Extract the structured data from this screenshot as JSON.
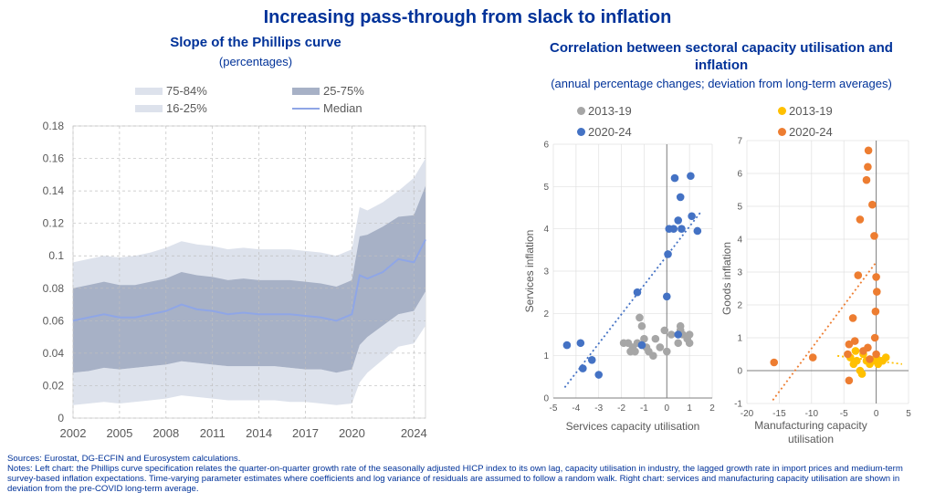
{
  "title": "Increasing pass-through from slack to inflation",
  "left": {
    "title": "Slope of the Phillips curve",
    "units": "(percentages)",
    "legend": {
      "b1": "75-84%",
      "b2": "25-75%",
      "b3": "16-25%",
      "median": "Median"
    }
  },
  "right": {
    "title_line1": "Correlation between sectoral capacity utilisation and",
    "title_line2": "inflation",
    "units": "(annual percentage changes; deviation from long-term averages)",
    "legend1": {
      "a": "2013-19",
      "b": "2020-24"
    },
    "legend2": {
      "a": "2013-19",
      "b": "2020-24"
    }
  },
  "notes": {
    "sources": "Sources: Eurostat, DG-ECFIN and Eurosystem calculations.",
    "text": "Notes: Left chart: the Phillips curve specification relates the quarter-on-quarter growth rate of the seasonally adjusted HICP index to its own lag, capacity utilisation in industry, the lagged growth rate in import prices and medium-term survey-based inflation expectations. Time-varying parameter estimates where coefficients and log variance of residuals are assumed to follow a random walk. Right chart: services and manufacturing capacity utilisation are shown in deviation from the pre-COVID long-term average."
  },
  "colors": {
    "title": "#003299",
    "band_outer": "#dde2ec",
    "band_inner": "#a7b1c6",
    "median": "#8fa6e6",
    "blue_dots": "#4472c4",
    "grey_dots": "#a6a6a6",
    "orange_dots": "#ed7d31",
    "yellow_dots": "#ffc000"
  },
  "chart_data": [
    {
      "type": "area",
      "title": "Slope of the Phillips curve",
      "subtitle": "(percentages)",
      "legend_position": "top",
      "grid": true,
      "xlim": [
        2002,
        2024.75
      ],
      "ylim": [
        0,
        0.18
      ],
      "x_ticks": [
        2002,
        2005,
        2008,
        2011,
        2014,
        2017,
        2020,
        2024
      ],
      "y_ticks": [
        0,
        0.02,
        0.04,
        0.06,
        0.08,
        0.1,
        0.12,
        0.14,
        0.16,
        0.18
      ],
      "x_tick_labels": [
        "2002",
        "2005",
        "2008",
        "2011",
        "2014",
        "2017",
        "2020",
        "2024"
      ],
      "y_tick_labels": [
        "0",
        "0.02",
        "0.04",
        "0.06",
        "0.08",
        "0.1",
        "0.12",
        "0.14",
        "0.16",
        "0.18"
      ],
      "x": [
        2002,
        2003,
        2004,
        2005,
        2006,
        2007,
        2008,
        2009,
        2010,
        2011,
        2012,
        2013,
        2014,
        2015,
        2016,
        2017,
        2018,
        2019,
        2020,
        2020.5,
        2021,
        2022,
        2023,
        2024,
        2024.75
      ],
      "series": [
        {
          "name": "Median",
          "values": [
            0.06,
            0.062,
            0.064,
            0.062,
            0.062,
            0.064,
            0.066,
            0.07,
            0.067,
            0.066,
            0.064,
            0.065,
            0.064,
            0.064,
            0.064,
            0.063,
            0.062,
            0.06,
            0.064,
            0.088,
            0.086,
            0.09,
            0.098,
            0.096,
            0.11
          ]
        },
        {
          "name": "75-84%",
          "lower": [
            0.055,
            0.057,
            0.059,
            0.057,
            0.057,
            0.059,
            0.061,
            0.064,
            0.061,
            0.06,
            0.059,
            0.06,
            0.059,
            0.059,
            0.059,
            0.058,
            0.057,
            0.055,
            0.059,
            0.078,
            0.081,
            0.086,
            0.092,
            0.09,
            0.1
          ],
          "upper": [
            0.096,
            0.098,
            0.1,
            0.099,
            0.1,
            0.102,
            0.105,
            0.109,
            0.107,
            0.106,
            0.104,
            0.105,
            0.104,
            0.104,
            0.104,
            0.103,
            0.102,
            0.1,
            0.104,
            0.13,
            0.128,
            0.133,
            0.14,
            0.148,
            0.16
          ]
        },
        {
          "name": "25-75%",
          "lower": [
            0.028,
            0.029,
            0.031,
            0.03,
            0.031,
            0.032,
            0.033,
            0.035,
            0.034,
            0.033,
            0.032,
            0.032,
            0.032,
            0.032,
            0.031,
            0.03,
            0.03,
            0.028,
            0.03,
            0.045,
            0.05,
            0.057,
            0.064,
            0.066,
            0.078
          ],
          "upper": [
            0.08,
            0.082,
            0.084,
            0.082,
            0.082,
            0.084,
            0.086,
            0.09,
            0.088,
            0.087,
            0.085,
            0.086,
            0.085,
            0.085,
            0.085,
            0.084,
            0.083,
            0.081,
            0.085,
            0.112,
            0.113,
            0.118,
            0.124,
            0.125,
            0.143
          ]
        },
        {
          "name": "16-25%",
          "lower": [
            0.008,
            0.009,
            0.01,
            0.009,
            0.01,
            0.011,
            0.012,
            0.014,
            0.013,
            0.012,
            0.011,
            0.011,
            0.011,
            0.011,
            0.01,
            0.01,
            0.009,
            0.008,
            0.009,
            0.022,
            0.028,
            0.036,
            0.044,
            0.046,
            0.057
          ],
          "upper": [
            0.028,
            0.029,
            0.031,
            0.03,
            0.031,
            0.032,
            0.033,
            0.035,
            0.034,
            0.033,
            0.032,
            0.032,
            0.032,
            0.032,
            0.031,
            0.03,
            0.03,
            0.028,
            0.03,
            0.045,
            0.05,
            0.057,
            0.064,
            0.066,
            0.078
          ]
        }
      ]
    },
    {
      "type": "scatter",
      "xlabel": "Services capacity utilisation",
      "ylabel": "Services inflation",
      "xlim": [
        -5,
        2
      ],
      "ylim": [
        0,
        6
      ],
      "x_ticks": [
        -5,
        -4,
        -3,
        -2,
        -1,
        0,
        1,
        2
      ],
      "y_ticks": [
        0,
        1,
        2,
        3,
        4,
        5,
        6
      ],
      "x_tick_labels": [
        "-5",
        "-4",
        "-3",
        "-2",
        "-1",
        "0",
        "1",
        "2"
      ],
      "y_tick_labels": [
        "0",
        "1",
        "2",
        "3",
        "4",
        "5",
        "6"
      ],
      "legend_position": "top-left",
      "grid": true,
      "series": [
        {
          "name": "2013-19",
          "points": [
            [
              -1.2,
              1.9
            ],
            [
              -1.1,
              1.7
            ],
            [
              -1.5,
              1.2
            ],
            [
              -1.3,
              1.3
            ],
            [
              -1.7,
              1.3
            ],
            [
              -1.0,
              1.4
            ],
            [
              -1.4,
              1.1
            ],
            [
              -1.6,
              1.1
            ],
            [
              -0.9,
              1.2
            ],
            [
              -0.6,
              1.0
            ],
            [
              -0.3,
              1.2
            ],
            [
              0.0,
              1.1
            ],
            [
              -0.1,
              1.6
            ],
            [
              0.2,
              1.5
            ],
            [
              0.5,
              1.3
            ],
            [
              0.6,
              1.7
            ],
            [
              0.7,
              1.5
            ],
            [
              0.9,
              1.4
            ],
            [
              1.0,
              1.5
            ],
            [
              1.0,
              1.3
            ],
            [
              0.6,
              1.6
            ],
            [
              -0.8,
              1.1
            ],
            [
              -1.9,
              1.3
            ],
            [
              -0.5,
              1.4
            ]
          ]
        },
        {
          "name": "2020-24",
          "points": [
            [
              -4.4,
              1.25
            ],
            [
              -3.8,
              1.3
            ],
            [
              -3.7,
              0.7
            ],
            [
              -3.3,
              0.9
            ],
            [
              -3.0,
              0.55
            ],
            [
              -1.3,
              2.5
            ],
            [
              -1.1,
              1.25
            ],
            [
              0.0,
              2.4
            ],
            [
              0.05,
              3.4
            ],
            [
              0.1,
              4.0
            ],
            [
              0.3,
              4.0
            ],
            [
              0.35,
              5.2
            ],
            [
              0.5,
              4.2
            ],
            [
              0.6,
              4.75
            ],
            [
              0.65,
              4.0
            ],
            [
              1.05,
              5.25
            ],
            [
              1.1,
              4.3
            ],
            [
              1.35,
              3.95
            ],
            [
              0.5,
              1.5
            ]
          ]
        },
        {
          "name": "trend",
          "points": [
            [
              -4.5,
              0.25
            ],
            [
              1.5,
              4.4
            ]
          ]
        }
      ]
    },
    {
      "type": "scatter",
      "xlabel": "Manufacturing capacity utilisation",
      "ylabel": "Goods inflation",
      "xlim": [
        -20,
        5
      ],
      "ylim": [
        -1,
        7
      ],
      "x_ticks": [
        -20,
        -15,
        -10,
        -5,
        0,
        5
      ],
      "y_ticks": [
        -1,
        0,
        1,
        2,
        3,
        4,
        5,
        6,
        7
      ],
      "x_tick_labels": [
        "-20",
        "-15",
        "-10",
        "-5",
        "0",
        "5"
      ],
      "y_tick_labels": [
        "-1",
        "0",
        "1",
        "2",
        "3",
        "4",
        "5",
        "6",
        "7"
      ],
      "legend_position": "top-left",
      "grid": true,
      "series": [
        {
          "name": "2013-19",
          "points": [
            [
              -4.0,
              0.4
            ],
            [
              -3.5,
              0.2
            ],
            [
              -3.0,
              0.3
            ],
            [
              -2.5,
              0.0
            ],
            [
              -2.0,
              0.5
            ],
            [
              -1.5,
              0.3
            ],
            [
              -1.0,
              0.2
            ],
            [
              -0.5,
              0.3
            ],
            [
              0.0,
              0.4
            ],
            [
              0.3,
              0.2
            ],
            [
              0.6,
              0.3
            ],
            [
              1.0,
              0.3
            ],
            [
              1.5,
              0.4
            ],
            [
              -2.2,
              -0.1
            ],
            [
              -3.2,
              0.6
            ]
          ]
        },
        {
          "name": "2020-24",
          "points": [
            [
              -15.8,
              0.25
            ],
            [
              -9.8,
              0.4
            ],
            [
              -4.4,
              0.5
            ],
            [
              -4.2,
              0.8
            ],
            [
              -3.3,
              0.9
            ],
            [
              -3.6,
              1.6
            ],
            [
              -2.8,
              2.9
            ],
            [
              -2.5,
              4.6
            ],
            [
              -1.5,
              5.8
            ],
            [
              -1.3,
              6.2
            ],
            [
              -1.2,
              6.7
            ],
            [
              -0.6,
              5.05
            ],
            [
              -0.3,
              4.1
            ],
            [
              0.0,
              2.85
            ],
            [
              0.1,
              2.4
            ],
            [
              -0.1,
              1.8
            ],
            [
              -0.2,
              1.0
            ],
            [
              0.0,
              0.5
            ],
            [
              -1.3,
              0.7
            ],
            [
              -2.0,
              0.6
            ],
            [
              -4.2,
              -0.3
            ],
            [
              -1.0,
              0.35
            ]
          ]
        },
        {
          "name": "trend-a",
          "points": [
            [
              -16,
              -0.9
            ],
            [
              0,
              3.3
            ]
          ]
        },
        {
          "name": "trend-b",
          "points": [
            [
              -6,
              0.45
            ],
            [
              4,
              0.2
            ]
          ]
        }
      ]
    }
  ]
}
